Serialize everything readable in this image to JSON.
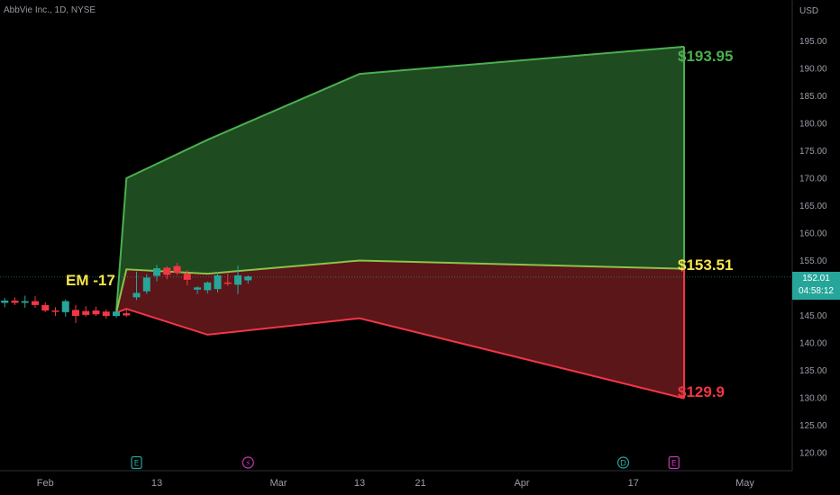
{
  "header": {
    "symbol": "AbbVie Inc., 1D, NYSE"
  },
  "chart_data": {
    "type": "area",
    "currency": "USD",
    "y_ticks": [
      195,
      190,
      185,
      180,
      175,
      170,
      165,
      160,
      155,
      150,
      145,
      140,
      135,
      130,
      125,
      120
    ],
    "ylim": [
      117,
      200
    ],
    "x_labels": [
      {
        "label": "Feb",
        "idx": -7
      },
      {
        "label": "13",
        "idx": 4
      },
      {
        "label": "Mar",
        "idx": 16
      },
      {
        "label": "13",
        "idx": 24
      },
      {
        "label": "21",
        "idx": 30
      },
      {
        "label": "Apr",
        "idx": 40
      },
      {
        "label": "17",
        "idx": 51
      },
      {
        "label": "May",
        "idx": 62
      }
    ],
    "upper_band": [
      [
        0,
        145.5
      ],
      [
        1,
        170
      ],
      [
        9,
        177
      ],
      [
        24,
        189
      ],
      [
        56,
        193.95
      ]
    ],
    "mid_line": [
      [
        0,
        145.5
      ],
      [
        1,
        153.4
      ],
      [
        9,
        152.6
      ],
      [
        24,
        155
      ],
      [
        56,
        153.51
      ]
    ],
    "lower_band": [
      [
        0,
        145.5
      ],
      [
        1,
        146.2
      ],
      [
        9,
        141.5
      ],
      [
        24,
        144.5
      ],
      [
        56,
        129.9
      ]
    ],
    "candles": [
      {
        "i": -12,
        "o": 147.9,
        "h": 148.6,
        "l": 146.6,
        "c": 147.3
      },
      {
        "i": -11,
        "o": 147.3,
        "h": 148.2,
        "l": 146.5,
        "c": 147.7
      },
      {
        "i": -10,
        "o": 147.7,
        "h": 148.3,
        "l": 146.9,
        "c": 147.3
      },
      {
        "i": -9,
        "o": 147.3,
        "h": 148.6,
        "l": 146.4,
        "c": 147.6
      },
      {
        "i": -8,
        "o": 147.6,
        "h": 148.5,
        "l": 146.4,
        "c": 146.9
      },
      {
        "i": -7,
        "o": 146.9,
        "h": 147.4,
        "l": 145.6,
        "c": 145.9
      },
      {
        "i": -6,
        "o": 145.9,
        "h": 146.5,
        "l": 144.9,
        "c": 145.7
      },
      {
        "i": -5,
        "o": 145.6,
        "h": 147.9,
        "l": 144.8,
        "c": 147.6
      },
      {
        "i": -4,
        "o": 146.0,
        "h": 146.9,
        "l": 143.6,
        "c": 144.9
      },
      {
        "i": -3,
        "o": 145.8,
        "h": 146.7,
        "l": 144.8,
        "c": 145.1
      },
      {
        "i": -2,
        "o": 145.9,
        "h": 146.6,
        "l": 144.9,
        "c": 145.2
      },
      {
        "i": -1,
        "o": 145.7,
        "h": 146.1,
        "l": 144.4,
        "c": 144.9
      },
      {
        "i": 0,
        "o": 144.9,
        "h": 146.0,
        "l": 144.6,
        "c": 145.7
      },
      {
        "i": 1,
        "o": 145.4,
        "h": 146.1,
        "l": 144.7,
        "c": 145.0
      },
      {
        "i": 2,
        "o": 148.3,
        "h": 153.0,
        "l": 147.8,
        "c": 149.1
      },
      {
        "i": 3,
        "o": 149.4,
        "h": 152.5,
        "l": 148.9,
        "c": 151.9
      },
      {
        "i": 4,
        "o": 152.2,
        "h": 154.2,
        "l": 151.2,
        "c": 153.6
      },
      {
        "i": 5,
        "o": 153.7,
        "h": 154.0,
        "l": 151.6,
        "c": 152.4
      },
      {
        "i": 6,
        "o": 154.0,
        "h": 154.6,
        "l": 152.4,
        "c": 152.8
      },
      {
        "i": 7,
        "o": 152.6,
        "h": 153.3,
        "l": 150.5,
        "c": 151.5
      },
      {
        "i": 8,
        "o": 149.7,
        "h": 150.3,
        "l": 148.9,
        "c": 150.1
      },
      {
        "i": 9,
        "o": 149.6,
        "h": 151.2,
        "l": 149.0,
        "c": 151.0
      },
      {
        "i": 10,
        "o": 149.8,
        "h": 152.9,
        "l": 149.2,
        "c": 152.3
      },
      {
        "i": 11,
        "o": 151.0,
        "h": 152.6,
        "l": 150.4,
        "c": 150.8
      },
      {
        "i": 12,
        "o": 150.6,
        "h": 154.1,
        "l": 148.9,
        "c": 152.3
      },
      {
        "i": 13,
        "o": 151.4,
        "h": 152.3,
        "l": 150.8,
        "c": 152.1
      }
    ],
    "current_price": 152.01,
    "countdown": "04:58:12",
    "annotations": [
      {
        "text": "EM -17",
        "color": "#f7e54a"
      },
      {
        "text": "$193.95",
        "color": "#4caf50"
      },
      {
        "text": "$153.51",
        "color": "#f7e54a"
      },
      {
        "text": "$129.9",
        "color": "#f23645"
      }
    ],
    "event_markers": [
      {
        "letter": "E",
        "idx": 2,
        "color": "#26a69a"
      },
      {
        "letter": "⚡",
        "idx": 13,
        "color": "#c83ab6"
      },
      {
        "letter": "D",
        "idx": 50,
        "color": "#26a69a"
      },
      {
        "letter": "E",
        "idx": 55,
        "color": "#c83ab6"
      }
    ],
    "colors": {
      "upper_fill": "#1e4b20",
      "upper_line": "#4caf50",
      "lower_fill": "#5b1619",
      "lower_line": "#f23645",
      "mid_line": "#8bc34a",
      "up_candle": "#26a69a",
      "down_candle": "#f23645"
    }
  }
}
